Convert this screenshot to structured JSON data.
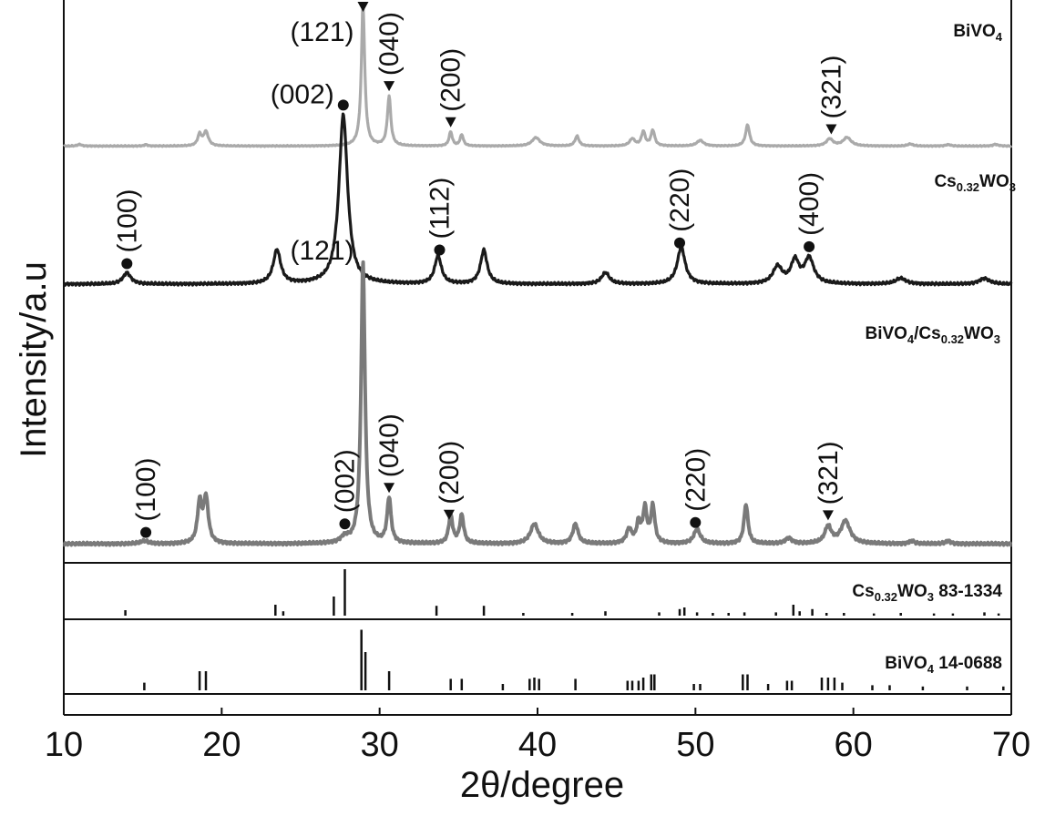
{
  "chart_data": {
    "type": "line",
    "xlabel": "2θ/degree",
    "ylabel": "Intensity/a.u",
    "xlim": [
      10,
      70
    ],
    "x_ticks": [
      "10",
      "20",
      "30",
      "40",
      "50",
      "60",
      "70"
    ],
    "colors": {
      "bivo4": "#aaaaaa",
      "cswo": "#1a1a1a",
      "composite": "#7a7a7a",
      "ref": "#111111"
    },
    "series": [
      {
        "name_parts": [
          [
            "BiVO",
            ""
          ],
          [
            "4",
            "sub"
          ]
        ],
        "color_key": "bivo4",
        "baseline": 0.08,
        "noise": 0.004,
        "peaks": [
          [
            11,
            0.012,
            0.15
          ],
          [
            15.2,
            0.01,
            0.12
          ],
          [
            18.6,
            0.08,
            0.14
          ],
          [
            19.0,
            0.1,
            0.18
          ],
          [
            28.95,
            1.0,
            0.13
          ],
          [
            30.6,
            0.35,
            0.13
          ],
          [
            34.5,
            0.1,
            0.12
          ],
          [
            35.2,
            0.08,
            0.12
          ],
          [
            39.9,
            0.06,
            0.3
          ],
          [
            42.5,
            0.07,
            0.15
          ],
          [
            46.0,
            0.05,
            0.2
          ],
          [
            46.7,
            0.1,
            0.14
          ],
          [
            47.3,
            0.11,
            0.14
          ],
          [
            50.3,
            0.04,
            0.25
          ],
          [
            53.3,
            0.15,
            0.15
          ],
          [
            58.5,
            0.05,
            0.25
          ],
          [
            59.6,
            0.06,
            0.3
          ],
          [
            63.6,
            0.015,
            0.2
          ],
          [
            66.0,
            0.01,
            0.2
          ],
          [
            69.0,
            0.012,
            0.2
          ]
        ]
      },
      {
        "name_parts": [
          [
            "Cs",
            ""
          ],
          [
            "0.32",
            "sub"
          ],
          [
            "WO",
            ""
          ],
          [
            "3",
            "sub"
          ]
        ],
        "color_key": "cswo",
        "baseline": 0.05,
        "noise": 0.005,
        "peaks": [
          [
            14.0,
            0.04,
            0.3
          ],
          [
            23.5,
            0.12,
            0.28
          ],
          [
            27.7,
            0.6,
            0.33
          ],
          [
            33.7,
            0.1,
            0.25
          ],
          [
            36.6,
            0.12,
            0.25
          ],
          [
            44.3,
            0.04,
            0.3
          ],
          [
            49.1,
            0.13,
            0.3
          ],
          [
            55.2,
            0.06,
            0.35
          ],
          [
            56.3,
            0.08,
            0.3
          ],
          [
            57.2,
            0.09,
            0.35
          ],
          [
            63.0,
            0.02,
            0.4
          ],
          [
            68.3,
            0.02,
            0.4
          ]
        ]
      },
      {
        "name_parts": [
          [
            "BiVO",
            ""
          ],
          [
            "4",
            "sub"
          ],
          [
            "/Cs",
            ""
          ],
          [
            "0.32",
            "sub"
          ],
          [
            "WO",
            ""
          ],
          [
            "3",
            "sub"
          ]
        ],
        "color_key": "composite",
        "baseline": 0.04,
        "noise": 0.005,
        "peaks": [
          [
            15.1,
            0.01,
            0.3
          ],
          [
            18.6,
            0.14,
            0.16
          ],
          [
            19.0,
            0.16,
            0.18
          ],
          [
            27.8,
            0.02,
            0.3
          ],
          [
            28.95,
            1.0,
            0.15
          ],
          [
            30.6,
            0.16,
            0.15
          ],
          [
            34.5,
            0.1,
            0.15
          ],
          [
            35.2,
            0.1,
            0.15
          ],
          [
            39.8,
            0.07,
            0.3
          ],
          [
            42.4,
            0.07,
            0.2
          ],
          [
            45.8,
            0.05,
            0.2
          ],
          [
            46.4,
            0.07,
            0.15
          ],
          [
            46.8,
            0.12,
            0.15
          ],
          [
            47.3,
            0.13,
            0.15
          ],
          [
            50.1,
            0.05,
            0.25
          ],
          [
            53.2,
            0.14,
            0.15
          ],
          [
            55.9,
            0.02,
            0.25
          ],
          [
            58.4,
            0.06,
            0.25
          ],
          [
            59.5,
            0.08,
            0.35
          ],
          [
            63.7,
            0.01,
            0.2
          ],
          [
            66.0,
            0.01,
            0.2
          ]
        ]
      }
    ],
    "reference_patterns": [
      {
        "name_parts": [
          [
            "Cs",
            ""
          ],
          [
            "0.32",
            "sub"
          ],
          [
            "WO",
            ""
          ],
          [
            "3",
            "sub"
          ],
          [
            "  83-1334",
            ""
          ]
        ],
        "lines": [
          [
            13.9,
            0.1
          ],
          [
            23.4,
            0.2
          ],
          [
            23.9,
            0.08
          ],
          [
            27.1,
            0.35
          ],
          [
            27.8,
            0.85
          ],
          [
            33.6,
            0.18
          ],
          [
            36.6,
            0.18
          ],
          [
            39.1,
            0.05
          ],
          [
            42.2,
            0.05
          ],
          [
            44.3,
            0.08
          ],
          [
            47.7,
            0.06
          ],
          [
            49.0,
            0.12
          ],
          [
            49.3,
            0.15
          ],
          [
            50.1,
            0.06
          ],
          [
            51.1,
            0.05
          ],
          [
            52.1,
            0.05
          ],
          [
            53.1,
            0.06
          ],
          [
            55.1,
            0.06
          ],
          [
            56.2,
            0.2
          ],
          [
            56.6,
            0.08
          ],
          [
            57.4,
            0.12
          ],
          [
            58.3,
            0.05
          ],
          [
            59.4,
            0.05
          ],
          [
            61.3,
            0.04
          ],
          [
            63.0,
            0.05
          ],
          [
            65.1,
            0.04
          ],
          [
            66.3,
            0.04
          ],
          [
            68.3,
            0.06
          ],
          [
            69.2,
            0.04
          ]
        ]
      },
      {
        "name_parts": [
          [
            "BiVO",
            ""
          ],
          [
            "4",
            "sub"
          ],
          [
            " 14-0688",
            ""
          ]
        ],
        "lines": [
          [
            15.1,
            0.12
          ],
          [
            18.6,
            0.3
          ],
          [
            19.0,
            0.3
          ],
          [
            28.85,
            0.95
          ],
          [
            29.1,
            0.6
          ],
          [
            30.6,
            0.3
          ],
          [
            34.5,
            0.18
          ],
          [
            35.2,
            0.18
          ],
          [
            37.8,
            0.1
          ],
          [
            39.5,
            0.18
          ],
          [
            39.8,
            0.2
          ],
          [
            40.1,
            0.18
          ],
          [
            42.4,
            0.18
          ],
          [
            45.7,
            0.15
          ],
          [
            46.0,
            0.15
          ],
          [
            46.4,
            0.15
          ],
          [
            46.7,
            0.2
          ],
          [
            47.2,
            0.25
          ],
          [
            47.4,
            0.25
          ],
          [
            49.9,
            0.1
          ],
          [
            50.3,
            0.1
          ],
          [
            53.0,
            0.25
          ],
          [
            53.3,
            0.25
          ],
          [
            54.6,
            0.1
          ],
          [
            55.8,
            0.15
          ],
          [
            56.1,
            0.15
          ],
          [
            58.0,
            0.2
          ],
          [
            58.4,
            0.2
          ],
          [
            58.8,
            0.2
          ],
          [
            59.3,
            0.12
          ],
          [
            61.2,
            0.08
          ],
          [
            62.3,
            0.08
          ],
          [
            64.4,
            0.06
          ],
          [
            67.2,
            0.06
          ],
          [
            69.5,
            0.06
          ]
        ]
      }
    ],
    "annotations": [
      {
        "series": 0,
        "text": "(121)",
        "x": 28.95,
        "marker": "triangle",
        "orient": "horizontal"
      },
      {
        "series": 0,
        "text": "(040)",
        "x": 30.6,
        "marker": "triangle",
        "orient": "vertical"
      },
      {
        "series": 0,
        "text": "(200)",
        "x": 34.5,
        "marker": "triangle",
        "orient": "vertical"
      },
      {
        "series": 0,
        "text": "(321)",
        "x": 58.6,
        "marker": "triangle",
        "orient": "vertical"
      },
      {
        "series": 1,
        "text": "(100)",
        "x": 14.0,
        "marker": "circle",
        "orient": "vertical"
      },
      {
        "series": 1,
        "text": "(002)",
        "x": 27.7,
        "marker": "circle",
        "orient": "horizontal"
      },
      {
        "series": 1,
        "text": "(112)",
        "x": 33.8,
        "marker": "circle",
        "orient": "vertical"
      },
      {
        "series": 1,
        "text": "(220)",
        "x": 49.0,
        "marker": "circle",
        "orient": "vertical"
      },
      {
        "series": 1,
        "text": "(400)",
        "x": 57.2,
        "marker": "circle",
        "orient": "vertical"
      },
      {
        "series": 2,
        "text": "(100)",
        "x": 15.2,
        "marker": "circle",
        "orient": "vertical"
      },
      {
        "series": 2,
        "text": "(002)",
        "x": 27.8,
        "marker": "circle",
        "orient": "vertical"
      },
      {
        "series": 2,
        "text": "(121)",
        "x": 28.95,
        "marker": "none",
        "orient": "horizontal"
      },
      {
        "series": 2,
        "text": "(040)",
        "x": 30.6,
        "marker": "triangle",
        "orient": "vertical"
      },
      {
        "series": 2,
        "text": "(200)",
        "x": 34.4,
        "marker": "triangle",
        "orient": "vertical"
      },
      {
        "series": 2,
        "text": "(220)",
        "x": 50.0,
        "marker": "circle",
        "orient": "vertical"
      },
      {
        "series": 2,
        "text": "(321)",
        "x": 58.4,
        "marker": "triangle",
        "orient": "vertical"
      }
    ]
  }
}
